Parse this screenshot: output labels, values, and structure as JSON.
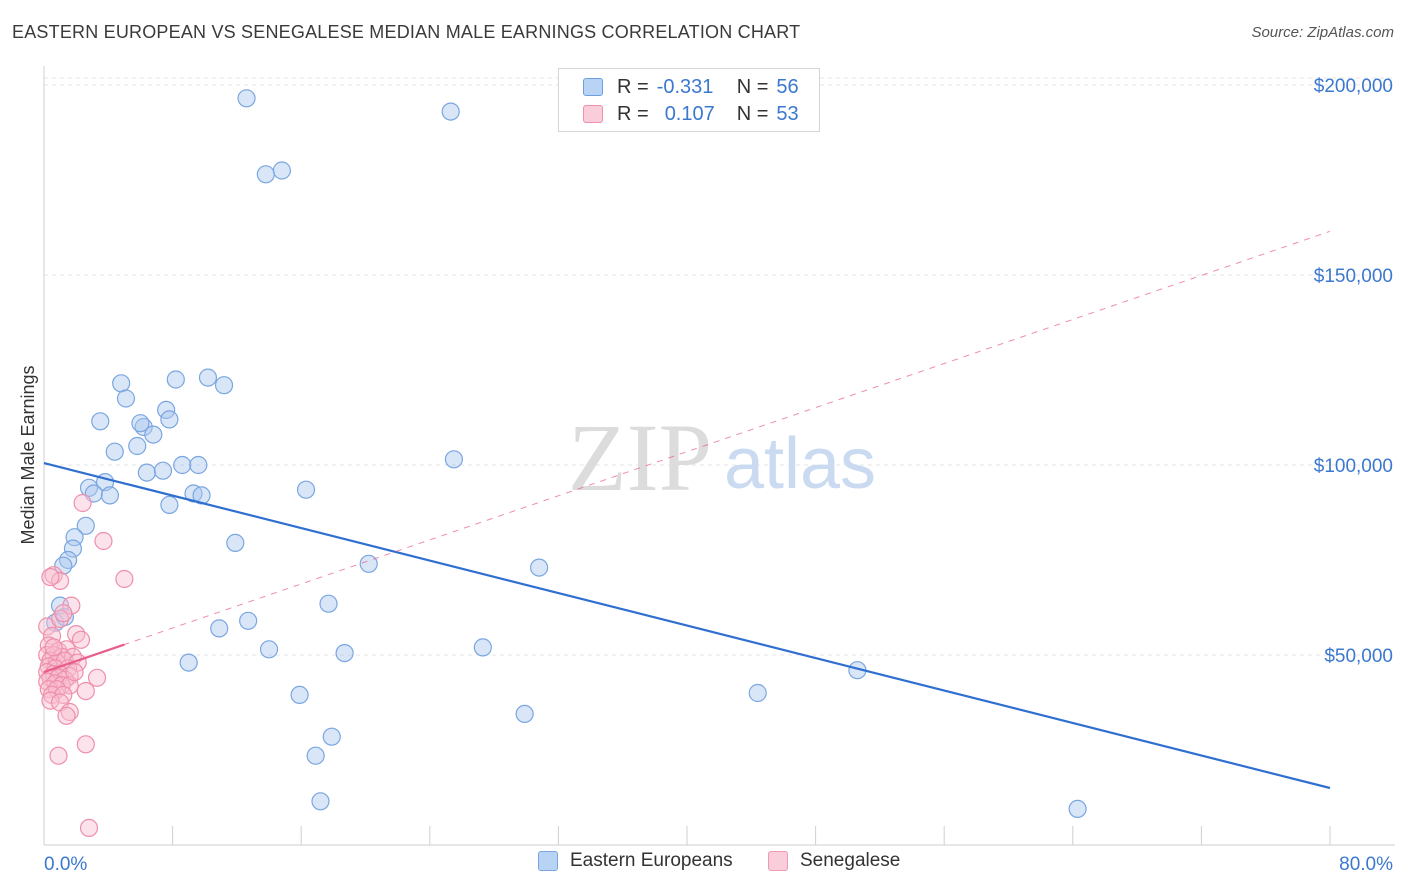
{
  "title": "EASTERN EUROPEAN VS SENEGALESE MEDIAN MALE EARNINGS CORRELATION CHART",
  "source": "Source: ZipAtlas.com",
  "watermark": {
    "zip": "ZIP",
    "atlas": "atlas"
  },
  "legend": {
    "r_label": "R =",
    "n_label": "N =",
    "rows": [
      {
        "r": "-0.331",
        "n": "56",
        "color": "#a9c8f0",
        "border": "#6d9fe0"
      },
      {
        "r": "0.107",
        "n": "53",
        "color": "#f8c3d2",
        "border": "#ee8fab"
      }
    ]
  },
  "bottom_legend": [
    {
      "label": "Eastern Europeans",
      "color": "#b9d3f4",
      "border": "#7aa6e0"
    },
    {
      "label": "Senegalese",
      "color": "#f9cdd9",
      "border": "#ef9ab3"
    }
  ],
  "chart_data": {
    "type": "scatter",
    "title": "EASTERN EUROPEAN VS SENEGALESE MEDIAN MALE EARNINGS CORRELATION CHART",
    "xlabel": "",
    "ylabel": "Median Male Earnings",
    "xlim": [
      0,
      80
    ],
    "ylim": [
      0,
      205000
    ],
    "x_tick_labels": {
      "left": "0.0%",
      "right": "80.0%"
    },
    "y_ticks": [
      {
        "value": 50000,
        "label": "$50,000"
      },
      {
        "value": 100000,
        "label": "$100,000"
      },
      {
        "value": 150000,
        "label": "$150,000"
      },
      {
        "value": 200000,
        "label": "$200,000"
      }
    ],
    "series": [
      {
        "name": "Eastern Europeans",
        "color": "#7aa6e0",
        "fill": "rgba(170,200,240,0.45)",
        "trend": {
          "x0": 0,
          "y0": 100500,
          "x1": 80,
          "y1": 15000,
          "color": "#2f6fd0",
          "dashed": false
        },
        "points": [
          [
            12.6,
            196500
          ],
          [
            25.3,
            193000
          ],
          [
            13.8,
            176500
          ],
          [
            14.8,
            177500
          ],
          [
            4.8,
            121500
          ],
          [
            8.2,
            122500
          ],
          [
            10.2,
            123000
          ],
          [
            11.2,
            121000
          ],
          [
            5.1,
            117500
          ],
          [
            3.5,
            111500
          ],
          [
            6.2,
            110000
          ],
          [
            6.0,
            111000
          ],
          [
            7.6,
            114500
          ],
          [
            7.8,
            112000
          ],
          [
            6.8,
            108000
          ],
          [
            4.4,
            103500
          ],
          [
            5.8,
            105000
          ],
          [
            6.4,
            98000
          ],
          [
            7.4,
            98500
          ],
          [
            8.6,
            100000
          ],
          [
            9.6,
            100000
          ],
          [
            25.5,
            101500
          ],
          [
            2.8,
            94000
          ],
          [
            3.8,
            95500
          ],
          [
            3.1,
            92500
          ],
          [
            4.1,
            92000
          ],
          [
            9.3,
            92500
          ],
          [
            9.8,
            92000
          ],
          [
            7.8,
            89500
          ],
          [
            16.3,
            93500
          ],
          [
            2.6,
            84000
          ],
          [
            1.9,
            81000
          ],
          [
            1.8,
            78000
          ],
          [
            1.5,
            75000
          ],
          [
            1.2,
            73500
          ],
          [
            11.9,
            79500
          ],
          [
            20.2,
            74000
          ],
          [
            30.8,
            73000
          ],
          [
            1.0,
            63000
          ],
          [
            0.7,
            58500
          ],
          [
            17.7,
            63500
          ],
          [
            12.7,
            59000
          ],
          [
            10.9,
            57000
          ],
          [
            14.0,
            51500
          ],
          [
            18.7,
            50500
          ],
          [
            27.3,
            52000
          ],
          [
            9.0,
            48000
          ],
          [
            50.6,
            46000
          ],
          [
            15.9,
            39500
          ],
          [
            44.4,
            40000
          ],
          [
            29.9,
            34500
          ],
          [
            17.9,
            28500
          ],
          [
            16.9,
            23500
          ],
          [
            17.2,
            11500
          ],
          [
            64.3,
            9500
          ],
          [
            1.3,
            60000
          ]
        ]
      },
      {
        "name": "Senegalese",
        "color": "#ee8fab",
        "fill": "rgba(248,190,208,0.45)",
        "trend": {
          "x0": 0,
          "y0": 45500,
          "x1": 80,
          "y1": 161500,
          "color": "#e85d8a",
          "dashed": true,
          "solid_until": 5.0
        },
        "points": [
          [
            2.4,
            90000
          ],
          [
            3.7,
            80000
          ],
          [
            0.6,
            71000
          ],
          [
            1.0,
            69500
          ],
          [
            5.0,
            70000
          ],
          [
            0.4,
            70500
          ],
          [
            1.7,
            63000
          ],
          [
            0.2,
            57500
          ],
          [
            1.0,
            59500
          ],
          [
            1.2,
            61000
          ],
          [
            0.5,
            55000
          ],
          [
            2.0,
            55500
          ],
          [
            2.3,
            54000
          ],
          [
            0.3,
            52500
          ],
          [
            0.9,
            51000
          ],
          [
            1.4,
            51500
          ],
          [
            0.2,
            50000
          ],
          [
            0.6,
            50000
          ],
          [
            1.1,
            49500
          ],
          [
            1.8,
            49500
          ],
          [
            0.4,
            48500
          ],
          [
            0.8,
            48000
          ],
          [
            1.3,
            48500
          ],
          [
            2.1,
            48000
          ],
          [
            0.3,
            47000
          ],
          [
            0.7,
            46500
          ],
          [
            1.5,
            46500
          ],
          [
            0.2,
            45500
          ],
          [
            0.6,
            45000
          ],
          [
            1.0,
            45000
          ],
          [
            1.6,
            44500
          ],
          [
            0.4,
            44000
          ],
          [
            0.9,
            44000
          ],
          [
            1.3,
            43500
          ],
          [
            0.2,
            43000
          ],
          [
            0.7,
            42500
          ],
          [
            1.1,
            42000
          ],
          [
            1.6,
            42000
          ],
          [
            0.3,
            41000
          ],
          [
            0.8,
            41000
          ],
          [
            2.6,
            40500
          ],
          [
            0.5,
            39500
          ],
          [
            1.2,
            39500
          ],
          [
            0.4,
            38000
          ],
          [
            1.0,
            37500
          ],
          [
            3.3,
            44000
          ],
          [
            1.6,
            35000
          ],
          [
            1.4,
            34000
          ],
          [
            2.6,
            26500
          ],
          [
            0.9,
            23500
          ],
          [
            2.8,
            4500
          ],
          [
            0.6,
            52000
          ],
          [
            1.9,
            45500
          ]
        ]
      }
    ]
  }
}
